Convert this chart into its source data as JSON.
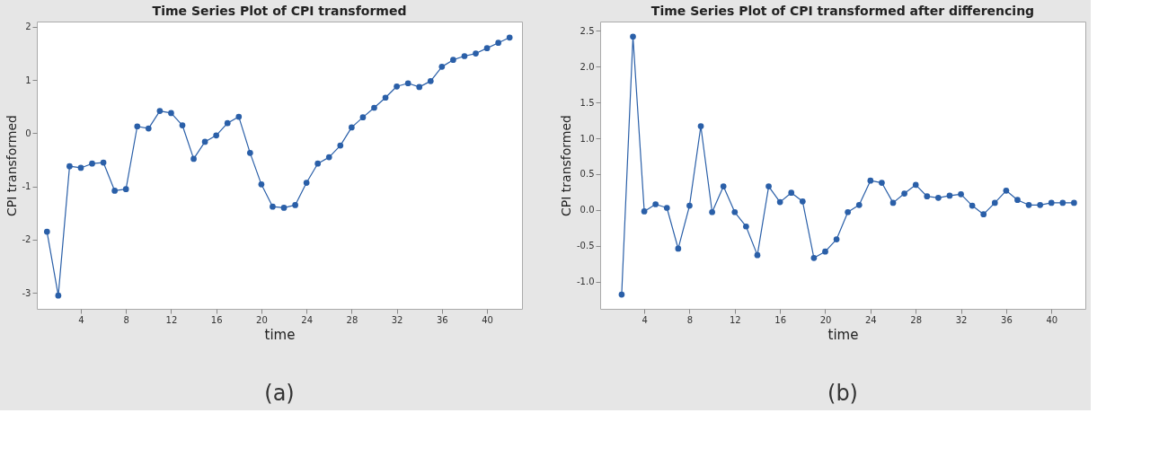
{
  "chart_data": [
    {
      "type": "line",
      "title": "Time Series Plot of CPI transformed",
      "xlabel": "time",
      "ylabel": "CPI transformed",
      "x": [
        1,
        2,
        3,
        4,
        5,
        6,
        7,
        8,
        9,
        10,
        11,
        12,
        13,
        14,
        15,
        16,
        17,
        18,
        19,
        20,
        21,
        22,
        23,
        24,
        25,
        26,
        27,
        28,
        29,
        30,
        31,
        32,
        33,
        34,
        35,
        36,
        37,
        38,
        39,
        40,
        41,
        42
      ],
      "series": [
        {
          "color": "#2a5fa8",
          "values": [
            -1.85,
            -3.05,
            -0.62,
            -0.65,
            -0.57,
            -0.55,
            -1.08,
            -1.05,
            0.13,
            0.09,
            0.42,
            0.38,
            0.15,
            -0.48,
            -0.16,
            -0.04,
            0.19,
            0.31,
            -0.37,
            -0.96,
            -1.38,
            -1.4,
            -1.35,
            -0.93,
            -0.57,
            -0.45,
            -0.23,
            0.11,
            0.3,
            0.48,
            0.67,
            0.88,
            0.94,
            0.87,
            0.98,
            1.25,
            1.38,
            1.45,
            1.5,
            1.6,
            1.7,
            1.8
          ]
        }
      ],
      "xlim": [
        0.1,
        43.1
      ],
      "xticks": [
        4,
        8,
        12,
        16,
        20,
        24,
        28,
        32,
        36,
        40
      ],
      "ylim": [
        -3.3,
        2.1
      ],
      "yticks": [
        -3,
        -2,
        -1,
        0,
        1,
        2
      ],
      "marker": "circle",
      "line_style": "solid",
      "grid": false,
      "annotations": [
        "(a)"
      ]
    },
    {
      "type": "line",
      "title": "Time Series Plot of CPI transformed after differencing",
      "xlabel": "time",
      "ylabel": "CPI transformed",
      "x": [
        2,
        3,
        4,
        5,
        6,
        7,
        8,
        9,
        10,
        11,
        12,
        13,
        14,
        15,
        16,
        17,
        18,
        19,
        20,
        21,
        22,
        23,
        24,
        25,
        26,
        27,
        28,
        29,
        30,
        31,
        32,
        33,
        34,
        35,
        36,
        37,
        38,
        39,
        40,
        41,
        42
      ],
      "series": [
        {
          "color": "#2a5fa8",
          "values": [
            -1.18,
            2.42,
            -0.02,
            0.08,
            0.03,
            -0.54,
            0.06,
            1.17,
            -0.03,
            0.33,
            -0.03,
            -0.23,
            -0.63,
            0.33,
            0.11,
            0.24,
            0.12,
            -0.67,
            -0.58,
            -0.41,
            -0.03,
            0.07,
            0.41,
            0.38,
            0.1,
            0.23,
            0.35,
            0.19,
            0.17,
            0.2,
            0.22,
            0.06,
            -0.06,
            0.1,
            0.27,
            0.14,
            0.07,
            0.07,
            0.1,
            0.1,
            0.1
          ]
        }
      ],
      "xlim": [
        0.1,
        43.0
      ],
      "xticks": [
        4,
        8,
        12,
        16,
        20,
        24,
        28,
        32,
        36,
        40
      ],
      "ylim": [
        -1.38,
        2.63
      ],
      "yticks": [
        {
          "value": -1,
          "label": "-1.0"
        },
        -0.5,
        {
          "value": 0,
          "label": "0.0"
        },
        0.5,
        {
          "value": 1,
          "label": "1.0"
        },
        1.5,
        {
          "value": 2,
          "label": "2.0"
        },
        2.5
      ],
      "marker": "circle",
      "line_style": "solid",
      "grid": false,
      "annotations": [
        "(b)"
      ]
    }
  ]
}
